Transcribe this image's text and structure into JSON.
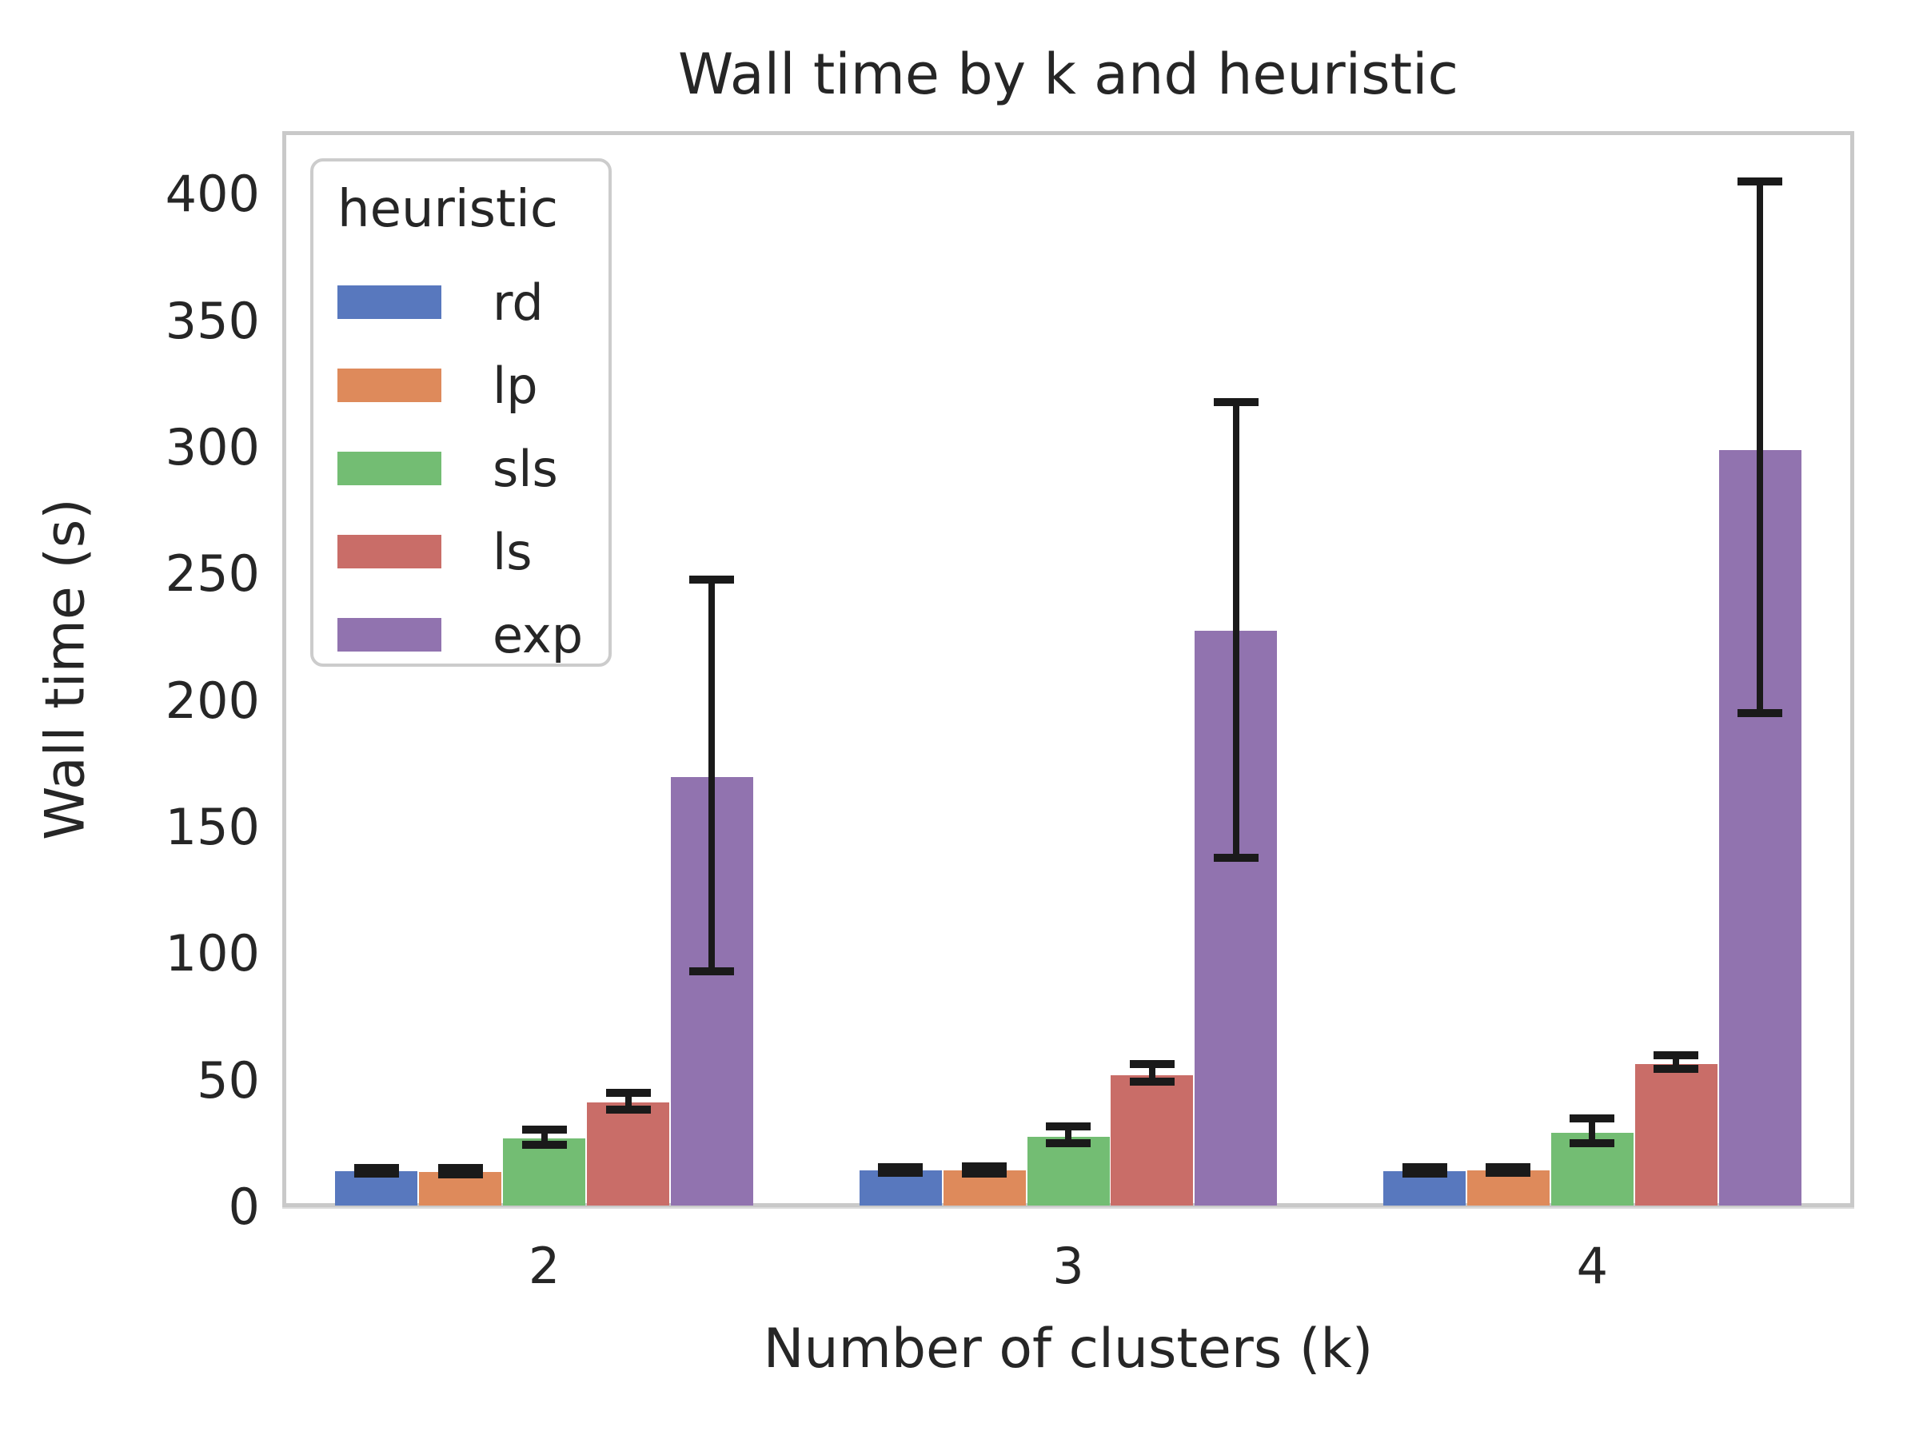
{
  "chart_data": {
    "type": "bar",
    "title": "Wall time by k and heuristic",
    "xlabel": "Number of clusters (k)",
    "ylabel": "Wall time (s)",
    "categories": [
      "2",
      "3",
      "4"
    ],
    "series": [
      {
        "name": "rd",
        "color": "#5878be",
        "values": [
          14.2,
          14.6,
          14.3
        ],
        "err_lo": [
          13.2,
          13.5,
          13.2
        ],
        "err_hi": [
          15.6,
          15.9,
          15.7
        ]
      },
      {
        "name": "lp",
        "color": "#de8a5b",
        "values": [
          14.0,
          14.4,
          14.5
        ],
        "err_lo": [
          13.0,
          13.4,
          13.5
        ],
        "err_hi": [
          15.4,
          16.1,
          15.8
        ]
      },
      {
        "name": "sls",
        "color": "#73bd73",
        "values": [
          27.0,
          27.7,
          29.5
        ],
        "err_lo": [
          24.5,
          25.2,
          25.4
        ],
        "err_hi": [
          30.5,
          32.0,
          35.2
        ]
      },
      {
        "name": "ls",
        "color": "#c96d68",
        "values": [
          41.5,
          52.0,
          56.5
        ],
        "err_lo": [
          38.5,
          49.7,
          54.7
        ],
        "err_hi": [
          45.3,
          56.5,
          60.0
        ]
      },
      {
        "name": "exp",
        "color": "#9173af",
        "values": [
          170.0,
          227.5,
          299.0
        ],
        "err_lo": [
          93.0,
          138.0,
          195.0
        ],
        "err_hi": [
          248.0,
          318.0,
          405.0
        ]
      }
    ],
    "legend": {
      "title": "heuristic",
      "position": "upper left"
    },
    "yticks": [
      0,
      50,
      100,
      150,
      200,
      250,
      300,
      350,
      400
    ],
    "ylim": [
      0,
      425
    ],
    "grid": true,
    "grid_color": "#dcdcdc",
    "spine_color": "#c9c9c9",
    "errorbar_color": "#1a1a1a",
    "text_color": "#262626"
  }
}
